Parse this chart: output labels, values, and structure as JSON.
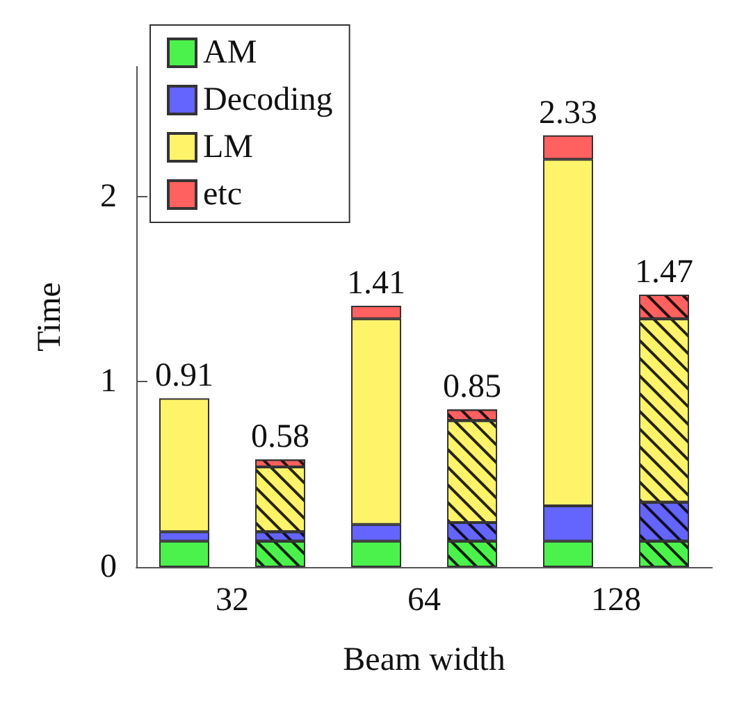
{
  "chart_data": {
    "type": "bar",
    "stacked": true,
    "xlabel": "Beam width",
    "ylabel": "Time",
    "categories": [
      "32",
      null,
      "64",
      null,
      "128",
      null
    ],
    "series": [
      {
        "name": "AM",
        "color": "#4cf24c",
        "values": [
          0.14,
          0.14,
          0.14,
          0.14,
          0.14,
          0.14
        ]
      },
      {
        "name": "Decoding",
        "color": "#6464ff",
        "values": [
          0.05,
          0.05,
          0.09,
          0.1,
          0.19,
          0.21
        ]
      },
      {
        "name": "LM",
        "color": "#fff36a",
        "values": [
          0.72,
          0.35,
          1.11,
          0.55,
          1.87,
          0.99
        ]
      },
      {
        "name": "etc",
        "color": "#ff6060",
        "values": [
          null,
          0.04,
          0.07,
          0.06,
          0.13,
          0.13
        ]
      }
    ],
    "totals": [
      "0.91",
      "0.58",
      "1.41",
      "0.85",
      "2.33",
      "1.47"
    ],
    "ylim": [
      0,
      2.7
    ],
    "yticks": [
      0,
      1,
      2
    ],
    "legend": "top left"
  }
}
